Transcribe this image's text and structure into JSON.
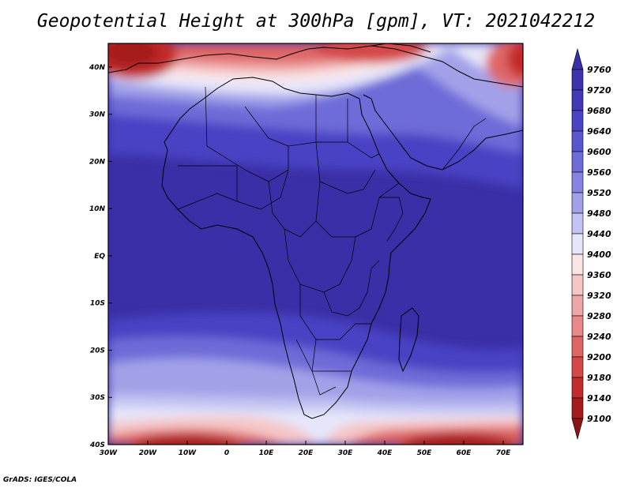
{
  "title": "Geopotential Height at 300hPa [gpm], VT: 2021042212",
  "footer": "GrADS: IGES/COLA",
  "map": {
    "lon_range": [
      -30,
      75
    ],
    "lat_range": [
      -40,
      45
    ],
    "lon_ticks": [
      {
        "value": -30,
        "label": "30W"
      },
      {
        "value": -20,
        "label": "20W"
      },
      {
        "value": -10,
        "label": "10W"
      },
      {
        "value": 0,
        "label": "0"
      },
      {
        "value": 10,
        "label": "10E"
      },
      {
        "value": 20,
        "label": "20E"
      },
      {
        "value": 30,
        "label": "30E"
      },
      {
        "value": 40,
        "label": "40E"
      },
      {
        "value": 50,
        "label": "50E"
      },
      {
        "value": 60,
        "label": "60E"
      },
      {
        "value": 70,
        "label": "70E"
      }
    ],
    "lat_ticks": [
      {
        "value": 40,
        "label": "40N"
      },
      {
        "value": 30,
        "label": "30N"
      },
      {
        "value": 20,
        "label": "20N"
      },
      {
        "value": 10,
        "label": "10N"
      },
      {
        "value": 0,
        "label": "EQ"
      },
      {
        "value": -10,
        "label": "10S"
      },
      {
        "value": -20,
        "label": "20S"
      },
      {
        "value": -30,
        "label": "30S"
      },
      {
        "value": -40,
        "label": "40S"
      }
    ]
  },
  "colorbar": {
    "levels": [
      9760,
      9720,
      9680,
      9640,
      9600,
      9560,
      9520,
      9480,
      9440,
      9400,
      9360,
      9320,
      9280,
      9240,
      9200,
      9180,
      9140,
      9100
    ],
    "colors": [
      "#3a2fa6",
      "#3d34ad",
      "#4139b6",
      "#4a43c4",
      "#5a56cf",
      "#6e6cd8",
      "#8684e0",
      "#a2a1e8",
      "#c4c4f2",
      "#e6e6fa",
      "#fae4e4",
      "#f5c6c6",
      "#eea7a7",
      "#e88888",
      "#df6666",
      "#d44848",
      "#c22c2c",
      "#a51c1c",
      "#8b1414"
    ]
  }
}
